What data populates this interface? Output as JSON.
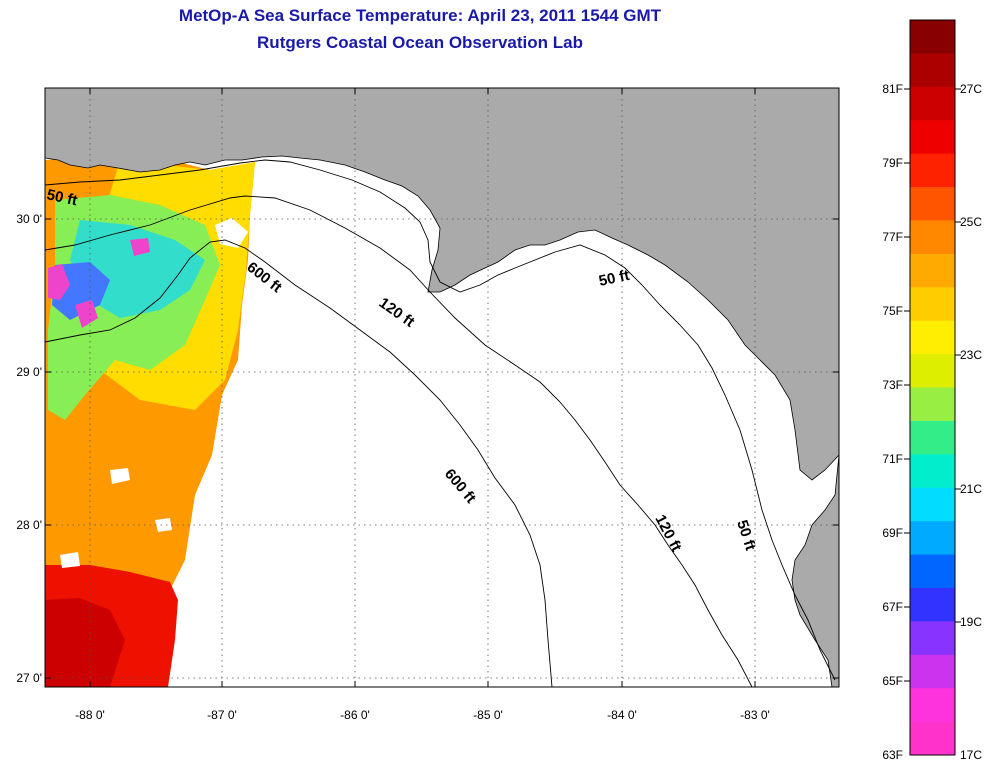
{
  "title": {
    "line1": "MetOp-A Sea Surface Temperature:  April 23, 2011 1544 GMT",
    "line2": "Rutgers Coastal Ocean Observation Lab"
  },
  "map": {
    "lat_ticks": [
      "30 0'",
      "29 0'",
      "28 0'",
      "27 0'"
    ],
    "lon_ticks": [
      "-88 0'",
      "-87 0'",
      "-86 0'",
      "-85 0'",
      "-84 0'",
      "-83 0'"
    ],
    "contour_labels": {
      "c50_west": "50 ft",
      "c50_east": "50 ft",
      "c50_south": "50 ft",
      "c120_north": "120 ft",
      "c120_south": "120 ft",
      "c600_north": "600 ft",
      "c600_south": "600 ft"
    },
    "colors": {
      "land": "#aaaaaa",
      "ocean_nodata": "#ffffff",
      "contour": "#000000"
    }
  },
  "colorbar": {
    "fahrenheit_labels": [
      "81F",
      "79F",
      "77F",
      "75F",
      "73F",
      "71F",
      "69F",
      "67F",
      "65F",
      "63F"
    ],
    "celsius_labels": [
      "27C",
      "25C",
      "23C",
      "21C",
      "19C",
      "17C"
    ],
    "range_f": [
      63,
      83
    ],
    "colors": [
      "#ff33cc",
      "#ff33dd",
      "#cc33ee",
      "#8833ff",
      "#3333ff",
      "#0066ff",
      "#00aaff",
      "#00ddff",
      "#00eecc",
      "#33ee88",
      "#99ee44",
      "#ddee00",
      "#ffee00",
      "#ffcc00",
      "#ffaa00",
      "#ff8800",
      "#ff5500",
      "#ff2200",
      "#ee0000",
      "#cc0000",
      "#aa0000",
      "#880000"
    ]
  }
}
